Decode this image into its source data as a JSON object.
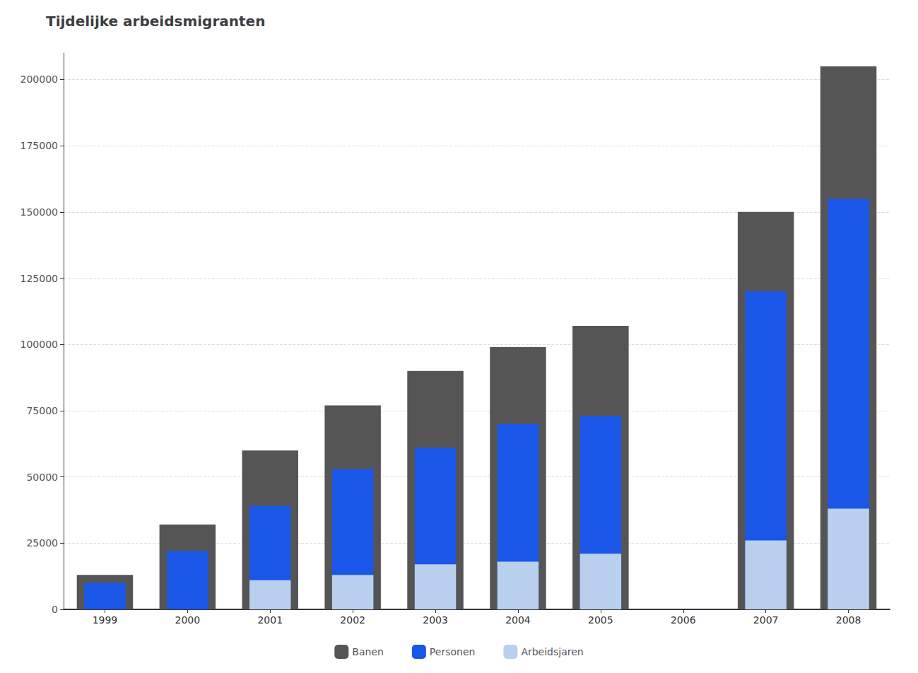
{
  "chart_data": {
    "type": "bar",
    "title": "Tijdelijke arbeidsmigranten",
    "categories": [
      "1999",
      "2000",
      "2001",
      "2002",
      "2003",
      "2004",
      "2005",
      "2006",
      "2007",
      "2008"
    ],
    "series": [
      {
        "name": "Banen",
        "color": "#555555",
        "values": [
          13000,
          32000,
          60000,
          77000,
          90000,
          99000,
          107000,
          0,
          150000,
          205000
        ]
      },
      {
        "name": "Personen",
        "color": "#1a56e8",
        "values": [
          10000,
          22000,
          39000,
          53000,
          61000,
          70000,
          73000,
          0,
          120000,
          155000
        ]
      },
      {
        "name": "Arbeidsjaren",
        "color": "#b8d0ee",
        "values": [
          0,
          0,
          11000,
          13000,
          17000,
          18000,
          21000,
          0,
          26000,
          38000
        ]
      }
    ],
    "ylim": [
      0,
      210000
    ],
    "yticks": [
      0,
      25000,
      50000,
      75000,
      100000,
      125000,
      150000,
      175000,
      200000
    ],
    "grid": true,
    "legend": "bottom"
  }
}
